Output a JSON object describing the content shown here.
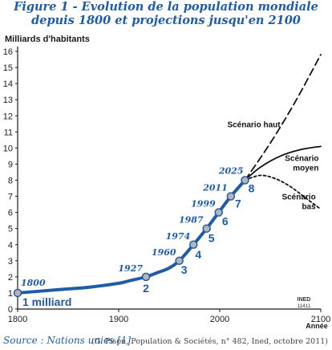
{
  "figure": {
    "title_line1": "Figure 1 - Evolution de la population mondiale",
    "title_line2": "depuis 1800 et projections jusqu'en 2100",
    "source": "Source : Nations unies [1].",
    "credit": "(G. Pison, Population & Sociétés, n° 482, Ined, octobre 2011)",
    "watermark_line1": "INED",
    "watermark_line2": "11411"
  },
  "colors": {
    "history": "#1f5ca8",
    "axis": "#1a1a1a",
    "projection": "#111111",
    "marker_fill": "#b5b5b5"
  },
  "chart_data": {
    "type": "line",
    "ylabel": "Milliards d'habitants",
    "xlabel": "Année",
    "xlim": [
      1800,
      2100
    ],
    "ylim": [
      0,
      16
    ],
    "x_ticks": [
      1800,
      1900,
      2000,
      2100
    ],
    "y_ticks": [
      0,
      1,
      2,
      3,
      4,
      5,
      6,
      7,
      8,
      9,
      10,
      11,
      12,
      13,
      14,
      15,
      16
    ],
    "grid": false,
    "series": [
      {
        "style": "solid-thick",
        "x": [
          1800,
          1820,
          1850,
          1870,
          1900,
          1910,
          1927,
          1940,
          1950,
          1960,
          1974,
          1987,
          1999,
          2011,
          2025
        ],
        "y": [
          1.0,
          1.1,
          1.25,
          1.35,
          1.6,
          1.75,
          2.0,
          2.3,
          2.55,
          3.0,
          4.0,
          5.0,
          6.0,
          7.0,
          8.0
        ]
      },
      {
        "name": "Scénario haut",
        "style": "dashed",
        "x": [
          2025,
          2050,
          2075,
          2100
        ],
        "y": [
          8.0,
          10.3,
          12.9,
          15.8
        ]
      },
      {
        "name": "Scénario moyen",
        "style": "solid",
        "x": [
          2025,
          2040,
          2060,
          2080,
          2100
        ],
        "y": [
          8.0,
          8.8,
          9.5,
          9.9,
          10.1
        ]
      },
      {
        "name": "Scénario bas",
        "style": "dotted",
        "x": [
          2025,
          2040,
          2055,
          2070,
          2085,
          2100
        ],
        "y": [
          8.0,
          8.3,
          8.1,
          7.6,
          6.9,
          6.2
        ]
      }
    ],
    "milestones": [
      {
        "year": 1800,
        "value": 1,
        "year_label": "1800",
        "count_label": "1 milliard"
      },
      {
        "year": 1927,
        "value": 2,
        "year_label": "1927",
        "count_label": "2"
      },
      {
        "year": 1960,
        "value": 3,
        "year_label": "1960",
        "count_label": "3"
      },
      {
        "year": 1974,
        "value": 4,
        "year_label": "1974",
        "count_label": "4"
      },
      {
        "year": 1987,
        "value": 5,
        "year_label": "1987",
        "count_label": "5"
      },
      {
        "year": 1999,
        "value": 6,
        "year_label": "1999",
        "count_label": "6"
      },
      {
        "year": 2011,
        "value": 7,
        "year_label": "2011",
        "count_label": "7"
      },
      {
        "year": 2025,
        "value": 8,
        "year_label": "2025",
        "count_label": "8"
      }
    ],
    "scenario_labels": [
      {
        "text_lines": [
          "Scénario haut"
        ],
        "anchor": [
          2060,
          11.3
        ]
      },
      {
        "text_lines": [
          "Scénario",
          "moyen"
        ],
        "anchor": [
          2098,
          9.2
        ]
      },
      {
        "text_lines": [
          "Scénario",
          "bas"
        ],
        "anchor": [
          2095,
          6.8
        ]
      }
    ]
  }
}
